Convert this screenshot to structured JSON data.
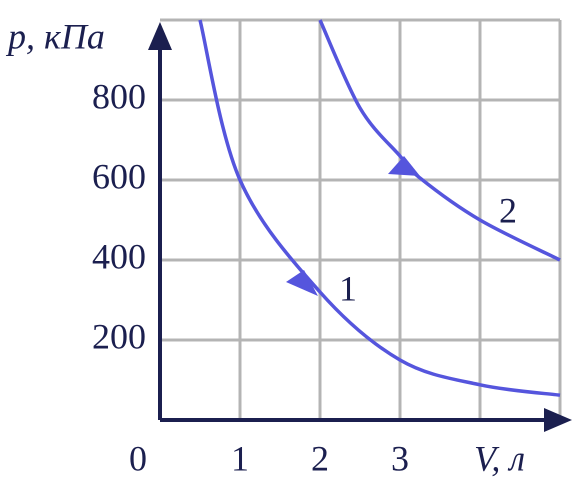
{
  "chart_data": {
    "type": "line",
    "y_label": "p, кПа",
    "x_label": "V, л",
    "xlim": [
      0,
      5
    ],
    "ylim": [
      0,
      1000
    ],
    "xticks": [
      0,
      1,
      2,
      3
    ],
    "yticks": [
      200,
      400,
      600,
      800
    ],
    "xgrid": [
      1,
      2,
      3,
      4,
      5
    ],
    "ygrid": [
      200,
      400,
      600,
      800,
      1000
    ],
    "series": [
      {
        "name": "1",
        "color": "#5555dd",
        "x": [
          0.5,
          1,
          2,
          3,
          4,
          5
        ],
        "values": [
          1000,
          600,
          320,
          150,
          88,
          62
        ]
      },
      {
        "name": "2",
        "color": "#5555dd",
        "x": [
          2,
          2.5,
          3,
          3.25,
          4,
          5
        ],
        "values": [
          1000,
          780,
          660,
          605,
          500,
          400
        ]
      }
    ]
  }
}
